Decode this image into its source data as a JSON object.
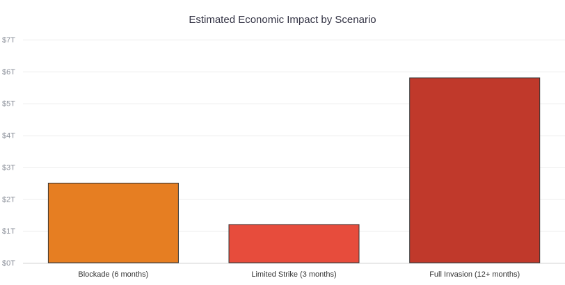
{
  "chart_data": {
    "type": "bar",
    "title": "Estimated Economic Impact by Scenario",
    "xlabel": "",
    "ylabel": "",
    "categories": [
      "Blockade (6 months)",
      "Limited Strike (3 months)",
      "Full Invasion (12+ months)"
    ],
    "values": [
      2.5,
      1.2,
      5.8
    ],
    "unit": "trillion USD",
    "colors": [
      "#e67e22",
      "#e74c3c",
      "#c0392b"
    ],
    "ylim": [
      0,
      7
    ],
    "yticks": [
      0,
      1,
      2,
      3,
      4,
      5,
      6,
      7
    ],
    "ytick_labels": [
      "$0T",
      "$1T",
      "$2T",
      "$3T",
      "$4T",
      "$5T",
      "$6T",
      "$7T"
    ],
    "grid": true,
    "legend": "none"
  }
}
